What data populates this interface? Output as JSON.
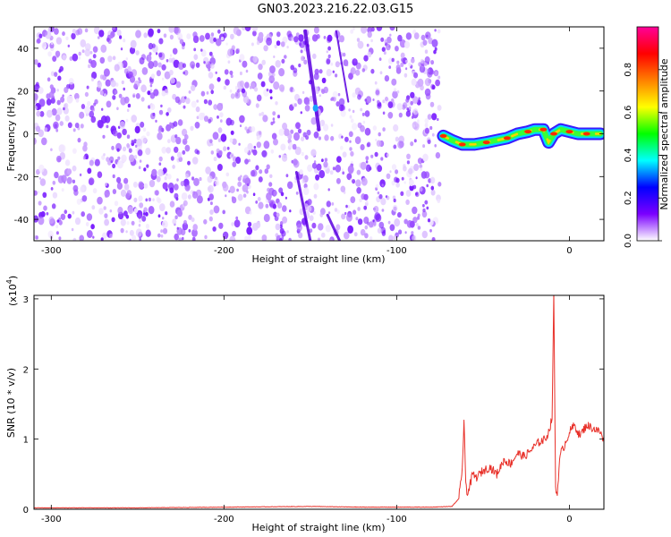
{
  "title": "GN03.2023.216.22.03.G15",
  "chart_data": [
    {
      "type": "heatmap",
      "title": "GN03.2023.216.22.03.G15",
      "xlabel": "Height of straight line (km)",
      "ylabel": "Frequency (Hz)",
      "xlim": [
        -310,
        20
      ],
      "ylim": [
        -50,
        50
      ],
      "xticks": [
        -300,
        -200,
        -100,
        0
      ],
      "yticks": [
        -40,
        -20,
        0,
        20,
        40
      ],
      "grid": false,
      "noise_region_x": [
        -310,
        -75
      ],
      "signal_ridge": {
        "x": [
          -73,
          -68,
          -62,
          -55,
          -48,
          -42,
          -36,
          -30,
          -24,
          -20,
          -15,
          -12,
          -9,
          -5,
          0,
          5,
          10,
          18
        ],
        "freq": [
          -1,
          -3,
          -5,
          -5,
          -4,
          -3,
          -2,
          0,
          1,
          2,
          2,
          -4,
          0,
          2,
          1,
          0,
          0,
          0
        ]
      },
      "colorbar": {
        "label": "Normalized spectral amplitude",
        "range": [
          0.0,
          1.0
        ],
        "ticks": [
          0.0,
          0.2,
          0.4,
          0.6,
          0.8
        ],
        "tick_labels": [
          "0.0",
          "0.2",
          "0.4",
          "0.6",
          "0.8"
        ],
        "colors": [
          "#ffffff",
          "#7b00ff",
          "#0000ff",
          "#00ffff",
          "#00ff00",
          "#ffff00",
          "#ff8000",
          "#ff0000",
          "#ff0099"
        ]
      }
    },
    {
      "type": "line",
      "xlabel": "Height of straight line (km)",
      "ylabel": "SNR (10 * v/v)",
      "yscale_label": "(x10",
      "yscale_exp": "4",
      "yscale_close": ")",
      "xlim": [
        -310,
        20
      ],
      "ylim": [
        0,
        3.05
      ],
      "xticks": [
        -300,
        -200,
        -100,
        0
      ],
      "yticks": [
        0,
        1,
        2,
        3
      ],
      "grid": false,
      "series": [
        {
          "color": "#e8312a",
          "x": [
            -310,
            -250,
            -200,
            -150,
            -120,
            -100,
            -80,
            -68,
            -64,
            -62,
            -61,
            -60,
            -59,
            -58,
            -56,
            -54,
            -50,
            -46,
            -42,
            -38,
            -34,
            -30,
            -26,
            -22,
            -18,
            -14,
            -12,
            -10,
            -9,
            -8,
            -7,
            -6,
            -5,
            -3,
            0,
            3,
            6,
            10,
            14,
            18,
            20
          ],
          "y": [
            0.02,
            0.02,
            0.03,
            0.04,
            0.03,
            0.03,
            0.03,
            0.04,
            0.15,
            0.6,
            1.22,
            0.4,
            0.2,
            0.3,
            0.5,
            0.45,
            0.55,
            0.6,
            0.5,
            0.7,
            0.65,
            0.8,
            0.75,
            0.85,
            0.95,
            1.0,
            1.1,
            1.3,
            3.05,
            0.3,
            0.2,
            0.6,
            0.8,
            0.9,
            1.1,
            1.2,
            1.05,
            1.2,
            1.15,
            1.1,
            0.95
          ]
        }
      ]
    }
  ]
}
